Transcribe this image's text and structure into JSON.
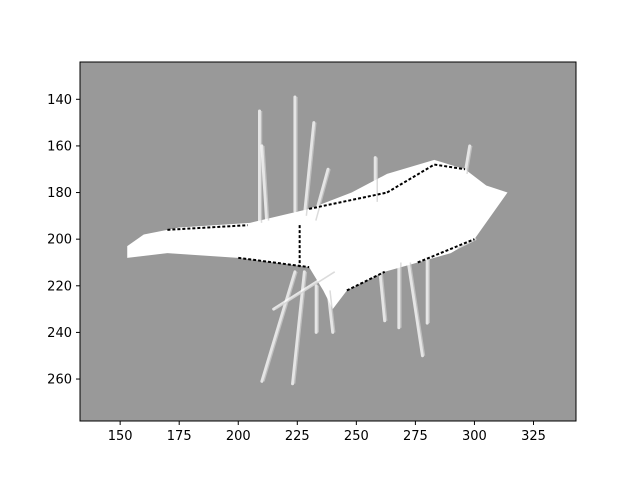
{
  "chart_data": {
    "type": "heatmap",
    "title": "",
    "xlabel": "",
    "ylabel": "",
    "xlim": [
      133,
      343
    ],
    "ylim": [
      278,
      124
    ],
    "y_inverted": true,
    "x_ticks": [
      150,
      175,
      200,
      225,
      250,
      275,
      300,
      325
    ],
    "y_ticks": [
      140,
      160,
      180,
      200,
      220,
      240,
      260
    ],
    "grid": false,
    "legend": "none",
    "colors": {
      "unknown": "#999999",
      "free": "#ffffff",
      "occupied": "#000000",
      "frame": "#000000",
      "text": "#000000"
    },
    "free_space_polygon": [
      [
        153,
        208
      ],
      [
        170,
        206
      ],
      [
        200,
        208
      ],
      [
        230,
        212
      ],
      [
        236,
        222
      ],
      [
        240,
        230
      ],
      [
        246,
        222
      ],
      [
        262,
        214
      ],
      [
        276,
        210
      ],
      [
        290,
        206
      ],
      [
        300,
        200
      ],
      [
        314,
        180
      ],
      [
        305,
        177
      ],
      [
        296,
        170
      ],
      [
        283,
        166
      ],
      [
        263,
        172
      ],
      [
        248,
        180
      ],
      [
        230,
        187
      ],
      [
        205,
        193
      ],
      [
        175,
        195
      ],
      [
        160,
        198
      ],
      [
        153,
        203
      ]
    ],
    "occupied_segments": [
      [
        [
          230,
          187
        ],
        [
          263,
          180
        ]
      ],
      [
        [
          263,
          180
        ],
        [
          283,
          168
        ]
      ],
      [
        [
          283,
          168
        ],
        [
          296,
          170
        ]
      ],
      [
        [
          200,
          208
        ],
        [
          230,
          212
        ]
      ],
      [
        [
          246,
          222
        ],
        [
          262,
          214
        ]
      ],
      [
        [
          276,
          210
        ],
        [
          300,
          200
        ]
      ],
      [
        [
          226,
          194
        ],
        [
          226,
          212
        ]
      ],
      [
        [
          170,
          196
        ],
        [
          204,
          194
        ]
      ]
    ],
    "ray_segments": [
      [
        [
          209,
          193
        ],
        [
          209,
          145
        ]
      ],
      [
        [
          212,
          192
        ],
        [
          210,
          160
        ]
      ],
      [
        [
          224,
          188
        ],
        [
          224,
          139
        ]
      ],
      [
        [
          228,
          190
        ],
        [
          232,
          150
        ]
      ],
      [
        [
          232,
          192
        ],
        [
          238,
          170
        ]
      ],
      [
        [
          258,
          184
        ],
        [
          258,
          165
        ]
      ],
      [
        [
          296,
          172
        ],
        [
          298,
          160
        ]
      ],
      [
        [
          224,
          214
        ],
        [
          210,
          261
        ]
      ],
      [
        [
          228,
          214
        ],
        [
          223,
          262
        ]
      ],
      [
        [
          233,
          220
        ],
        [
          233,
          240
        ]
      ],
      [
        [
          238,
          222
        ],
        [
          240,
          240
        ]
      ],
      [
        [
          260,
          214
        ],
        [
          262,
          235
        ]
      ],
      [
        [
          268,
          210
        ],
        [
          268,
          238
        ]
      ],
      [
        [
          272,
          210
        ],
        [
          278,
          250
        ]
      ],
      [
        [
          280,
          208
        ],
        [
          280,
          236
        ]
      ],
      [
        [
          240,
          214
        ],
        [
          215,
          230
        ]
      ],
      [
        [
          292,
          204
        ],
        [
          300,
          200
        ]
      ]
    ]
  }
}
